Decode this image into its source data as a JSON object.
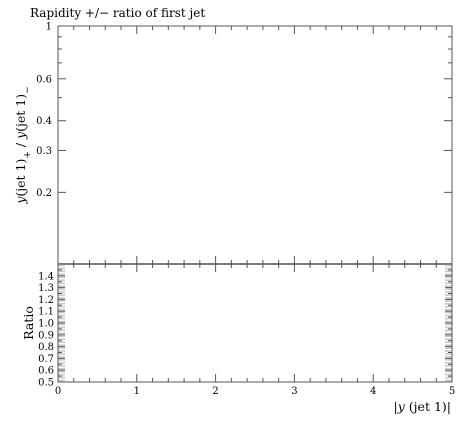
{
  "chart_data": [
    {
      "type": "line",
      "title": "Rapidity +/− ratio of first jet",
      "xlabel": "",
      "ylabel_main": "y",
      "ylabel_rest": "(jet 1)",
      "ylabel_sub1": "+",
      "ylabel_mid": " / ",
      "ylabel_main2": "y",
      "ylabel_rest2": "(jet 1)",
      "ylabel_sub2": "−",
      "yscale": "log",
      "xlim": [
        0,
        5
      ],
      "ylim": [
        0.1,
        1.0
      ],
      "ytick_labels": [
        "1",
        "0.6",
        "0.4",
        "0.3",
        "0.2"
      ],
      "ytick_values": [
        1.0,
        0.6,
        0.4,
        0.3,
        0.2
      ],
      "series": []
    },
    {
      "type": "line",
      "title": "",
      "xlabel": "|y(jet 1)|",
      "xlabel_bar": "|",
      "xlabel_main": "y",
      "xlabel_rest": "(jet 1)",
      "ylabel": "Ratio",
      "xlim": [
        0,
        5
      ],
      "ylim": [
        0.5,
        1.5
      ],
      "xtick_labels": [
        "0",
        "1",
        "2",
        "3",
        "4",
        "5"
      ],
      "xtick_values": [
        0,
        1,
        2,
        3,
        4,
        5
      ],
      "ytick_labels": [
        "0.5",
        "0.6",
        "0.7",
        "0.8",
        "0.9",
        "1.0",
        "1.1",
        "1.2",
        "1.3",
        "1.4"
      ],
      "ytick_values": [
        0.5,
        0.6,
        0.7,
        0.8,
        0.9,
        1.0,
        1.1,
        1.2,
        1.3,
        1.4
      ],
      "band_color": "#c8c8c8",
      "series": []
    }
  ]
}
